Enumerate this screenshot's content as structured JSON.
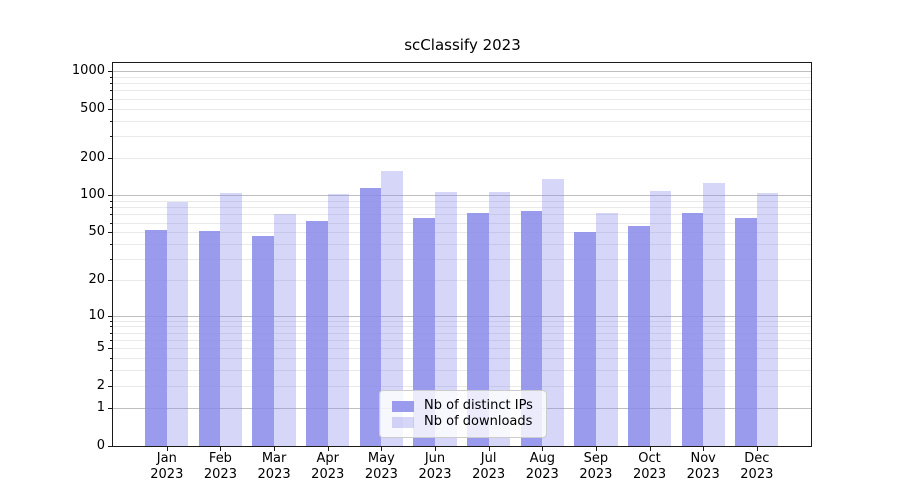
{
  "title": "scClassify 2023",
  "chart_data": {
    "type": "bar",
    "title": "scClassify 2023",
    "categories": [
      "Jan 2023",
      "Feb 2023",
      "Mar 2023",
      "Apr 2023",
      "May 2023",
      "Jun 2023",
      "Jul 2023",
      "Aug 2023",
      "Sep 2023",
      "Oct 2023",
      "Nov 2023",
      "Dec 2023"
    ],
    "series": [
      {
        "name": "Nb of distinct IPs",
        "color": "rgba(138,138,235,0.85)",
        "values": [
          52,
          51,
          47,
          62,
          114,
          66,
          72,
          75,
          50,
          56,
          72,
          66
        ]
      },
      {
        "name": "Nb of downloads",
        "color": "rgba(138,138,235,0.35)",
        "values": [
          89,
          105,
          70,
          102,
          157,
          106,
          107,
          135,
          72,
          108,
          127,
          104
        ]
      }
    ],
    "y_scale": "log10(value+1)",
    "yticks": [
      0,
      1,
      2,
      5,
      10,
      20,
      50,
      100,
      200,
      500,
      1000
    ],
    "major_gridlines": [
      1,
      10,
      100,
      1000
    ],
    "minor_gridlines": [
      2,
      3,
      4,
      5,
      6,
      7,
      8,
      9,
      20,
      30,
      40,
      50,
      60,
      70,
      80,
      90,
      200,
      300,
      400,
      500,
      600,
      700,
      800,
      900
    ],
    "ylim": [
      0,
      1200
    ],
    "grid": true,
    "legend_position": "lower center"
  },
  "colors": {
    "bar_base": "#8a8aeb",
    "major_grid": "#bfbfbf",
    "minor_grid": "#e9e9e9",
    "spine": "#1a1a1a",
    "legend_border": "#cccccc",
    "legend_background": "rgba(255,255,255,0.8)"
  }
}
